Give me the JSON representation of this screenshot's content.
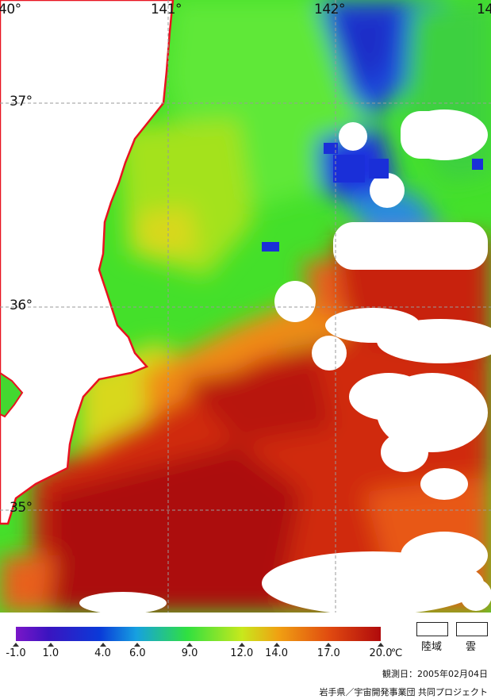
{
  "map": {
    "grid_labels": {
      "lon_140": "40°",
      "lon_141": "141°",
      "lon_142": "142°",
      "lon_143": "14",
      "lat_37": "37°",
      "lat_36": "36°",
      "lat_35": "35°"
    },
    "colors": {
      "land_coast": "#e8121f",
      "cloud": "#ffffff",
      "cold_blue": "#1a3dd6",
      "green": "#44e22a",
      "yellow": "#c9e51c",
      "orange": "#f07a12",
      "red": "#c21c0a",
      "dark_red": "#a8080a"
    }
  },
  "legend": {
    "ticks": [
      {
        "label": "-1.0",
        "value": -1.0
      },
      {
        "label": "1.0",
        "value": 1.0
      },
      {
        "label": "4.0",
        "value": 4.0
      },
      {
        "label": "6.0",
        "value": 6.0
      },
      {
        "label": "9.0",
        "value": 9.0
      },
      {
        "label": "12.0",
        "value": 12.0
      },
      {
        "label": "14.0",
        "value": 14.0
      },
      {
        "label": "17.0",
        "value": 17.0
      },
      {
        "label": "20.0",
        "value": 20.0
      }
    ],
    "unit": "℃",
    "land_label": "陸域",
    "cloud_label": "雲"
  },
  "observation_date": "観測日：2005年02月04日",
  "credit": "岩手県／宇宙開発事業団 共同プロジェクト"
}
